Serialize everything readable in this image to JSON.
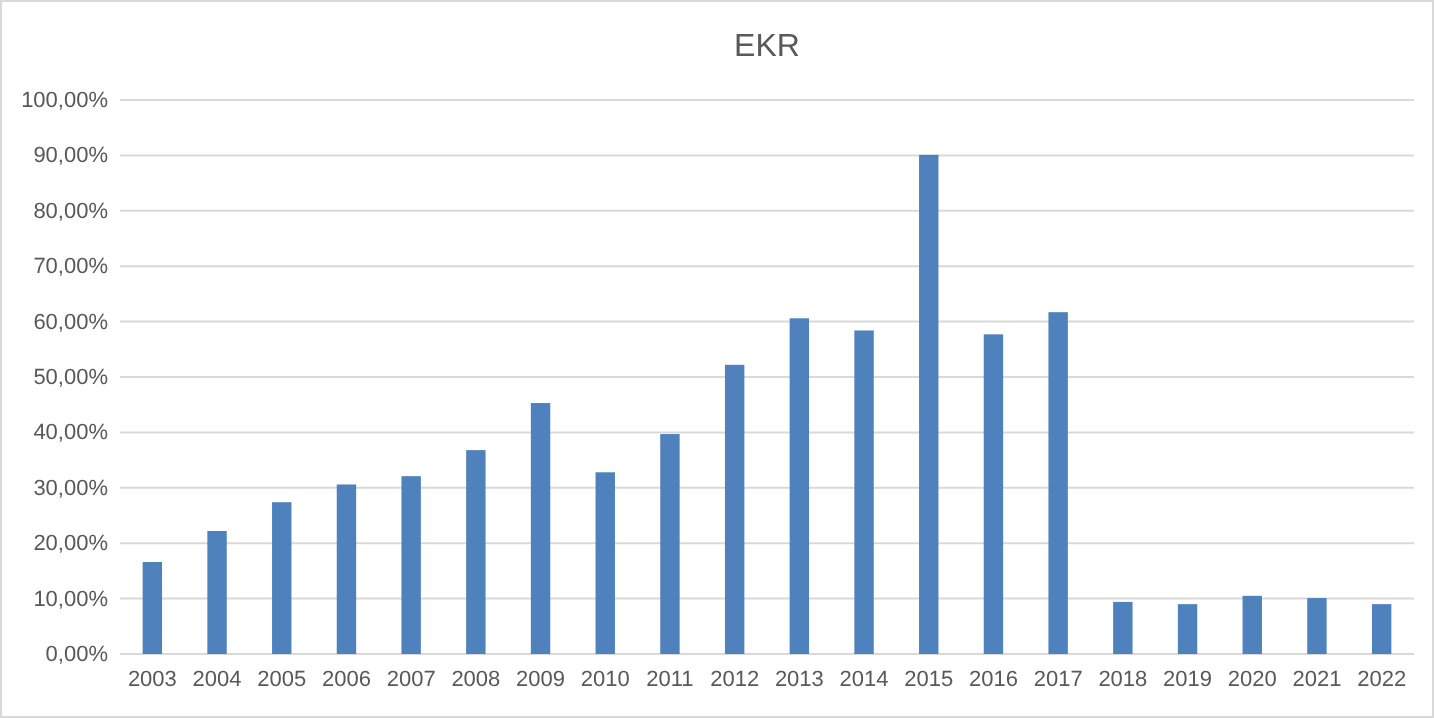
{
  "chart_data": {
    "type": "bar",
    "title": "EKR",
    "categories": [
      "2003",
      "2004",
      "2005",
      "2006",
      "2007",
      "2008",
      "2009",
      "2010",
      "2011",
      "2012",
      "2013",
      "2014",
      "2015",
      "2016",
      "2017",
      "2018",
      "2019",
      "2020",
      "2021",
      "2022"
    ],
    "values": [
      16.6,
      22.2,
      27.4,
      30.6,
      32.1,
      36.8,
      45.3,
      32.8,
      39.7,
      52.2,
      60.6,
      58.4,
      90.1,
      57.7,
      61.7,
      9.4,
      9.0,
      10.5,
      10.1,
      9.0
    ],
    "color": "#4f81bd",
    "ylim": [
      0,
      100
    ],
    "yticks": [
      {
        "value": 0,
        "label": "0,00%"
      },
      {
        "value": 10,
        "label": "10,00%"
      },
      {
        "value": 20,
        "label": "20,00%"
      },
      {
        "value": 30,
        "label": "30,00%"
      },
      {
        "value": 40,
        "label": "40,00%"
      },
      {
        "value": 50,
        "label": "50,00%"
      },
      {
        "value": 60,
        "label": "60,00%"
      },
      {
        "value": 70,
        "label": "70,00%"
      },
      {
        "value": 80,
        "label": "80,00%"
      },
      {
        "value": 90,
        "label": "90,00%"
      },
      {
        "value": 100,
        "label": "100,00%"
      }
    ],
    "grid": "y"
  }
}
